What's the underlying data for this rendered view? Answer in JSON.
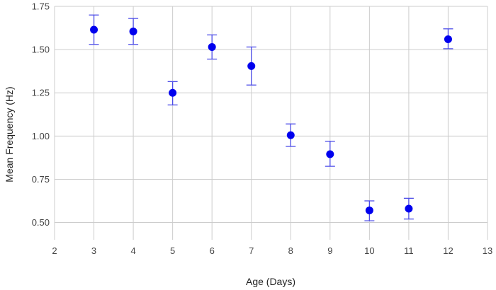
{
  "chart_data": {
    "type": "scatter",
    "xlabel": "Age (Days)",
    "ylabel": "Mean Frequency (Hz)",
    "xlim": [
      2,
      13
    ],
    "ylim": [
      0.4,
      1.75
    ],
    "x_ticks": [
      "2",
      "3",
      "4",
      "5",
      "6",
      "7",
      "8",
      "9",
      "10",
      "11",
      "12",
      "13"
    ],
    "y_ticks": [
      "0.50",
      "0.75",
      "1.00",
      "1.25",
      "1.50",
      "1.75"
    ],
    "grid": true,
    "colors": {
      "marker": "#0000ee",
      "error_bar": "#4d4de8",
      "grid": "#cccccc"
    },
    "series": [
      {
        "x": [
          3,
          4,
          5,
          6,
          7,
          8,
          9,
          10,
          11,
          12
        ],
        "y": [
          1.615,
          1.605,
          1.25,
          1.515,
          1.405,
          1.005,
          0.895,
          0.57,
          0.58,
          1.56
        ],
        "err_low": [
          1.53,
          1.53,
          1.18,
          1.445,
          1.295,
          0.94,
          0.825,
          0.51,
          0.52,
          1.505
        ],
        "err_high": [
          1.7,
          1.68,
          1.315,
          1.585,
          1.515,
          1.07,
          0.97,
          0.625,
          0.64,
          1.62
        ]
      }
    ]
  }
}
